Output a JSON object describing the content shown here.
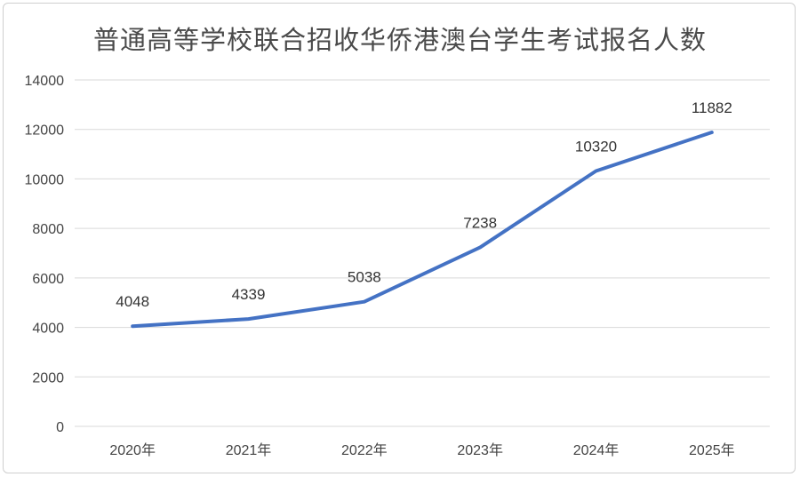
{
  "chart_data": {
    "type": "line",
    "title": "普通高等学校联合招收华侨港澳台学生考试报名人数",
    "categories": [
      "2020年",
      "2021年",
      "2022年",
      "2023年",
      "2024年",
      "2025年"
    ],
    "series": [
      {
        "values": [
          4048,
          4339,
          5038,
          7238,
          10320,
          11882
        ]
      }
    ],
    "data_labels": [
      "4048",
      "4339",
      "5038",
      "7238",
      "10320",
      "11882"
    ],
    "y_ticks": [
      "0",
      "2000",
      "4000",
      "6000",
      "8000",
      "10000",
      "12000",
      "14000"
    ],
    "ylim": [
      0,
      14000
    ],
    "xlabel": "",
    "ylabel": "",
    "grid": true,
    "legend": "none",
    "line_color": "#4472c4",
    "grid_color": "#d9d9d9"
  }
}
